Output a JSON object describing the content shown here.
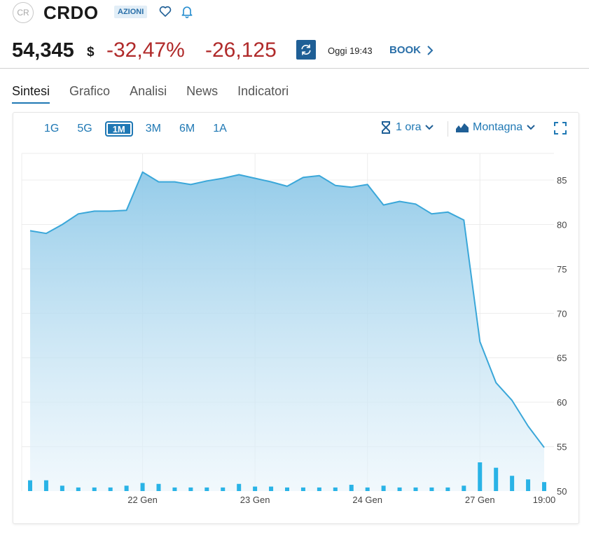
{
  "header": {
    "logo_text": "CR",
    "ticker": "CRDO",
    "badge": "AZIONI",
    "price": "54,345",
    "currency": "$",
    "pct_change": "-32,47%",
    "abs_change": "-26,125",
    "time": "Oggi 19:43",
    "book_label": "BOOK"
  },
  "tabs": [
    "Sintesi",
    "Grafico",
    "Analisi",
    "News",
    "Indicatori"
  ],
  "active_tab": 0,
  "toolbar": {
    "ranges": [
      "1G",
      "5G",
      "1M",
      "3M",
      "6M",
      "1A"
    ],
    "active_range": 2,
    "interval_label": "1 ora",
    "chart_type_label": "Montagna"
  },
  "colors": {
    "accent": "#1f78b4",
    "negative": "#b02a2a",
    "line": "#3aa7d9",
    "volume": "#29b3e6"
  },
  "chart_data": {
    "type": "area",
    "title": "",
    "xlabel": "",
    "ylabel": "",
    "ylim": [
      50,
      88
    ],
    "y_ticks": [
      50,
      55,
      60,
      65,
      70,
      75,
      80,
      85
    ],
    "x_tick_labels": [
      "22 Gen",
      "23 Gen",
      "24 Gen",
      "27 Gen",
      "19:00"
    ],
    "x_tick_index": [
      7,
      14,
      21,
      28,
      32
    ],
    "series": [
      {
        "values": [
          79.3,
          79.0,
          80.0,
          81.2,
          81.5,
          81.5,
          81.6,
          85.9,
          84.8,
          84.8,
          84.5,
          84.9,
          85.2,
          85.6,
          85.2,
          84.8,
          84.3,
          85.3,
          85.5,
          84.4,
          84.2,
          84.5,
          82.2,
          82.6,
          82.3,
          81.2,
          81.4,
          80.5,
          66.8,
          62.2,
          60.2,
          57.3,
          54.9
        ]
      }
    ],
    "volume": [
      1.2,
      1.2,
      0.6,
      0.4,
      0.4,
      0.4,
      0.6,
      0.9,
      0.8,
      0.4,
      0.4,
      0.4,
      0.4,
      0.8,
      0.5,
      0.5,
      0.4,
      0.4,
      0.4,
      0.4,
      0.7,
      0.4,
      0.6,
      0.4,
      0.4,
      0.4,
      0.4,
      0.6,
      3.2,
      2.6,
      1.7,
      1.3,
      1.0
    ],
    "grid": true
  }
}
